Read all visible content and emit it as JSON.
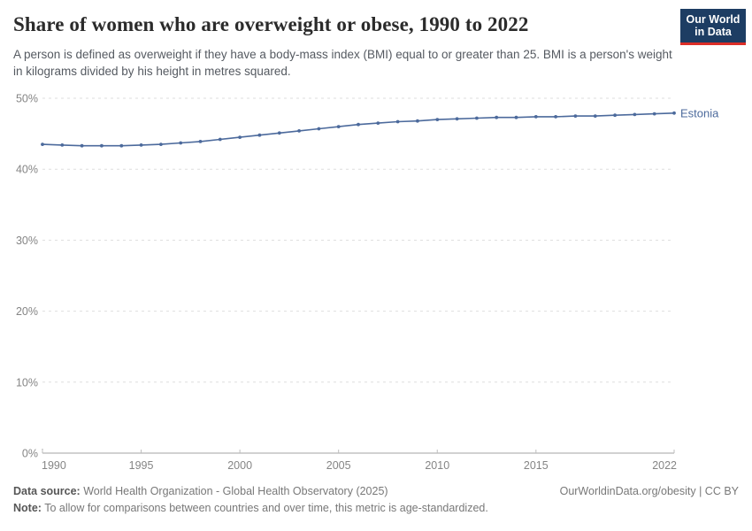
{
  "header": {
    "title": "Share of women who are overweight or obese, 1990 to 2022",
    "subtitle": "A person is defined as overweight if they have a body-mass index (BMI) equal to or greater than 25. BMI is a person's weight in kilograms divided by his height in metres squared.",
    "logo": {
      "line1": "Our World",
      "line2": "in Data",
      "bg_color": "#1d3d63",
      "accent_color": "#dc2e27"
    }
  },
  "chart_data": {
    "type": "line",
    "title": "Share of women who are overweight or obese, 1990 to 2022",
    "xlabel": "",
    "ylabel": "",
    "xlim": [
      1990,
      2022
    ],
    "ylim": [
      0,
      50
    ],
    "x_ticks": [
      1990,
      1995,
      2000,
      2005,
      2010,
      2015,
      2022
    ],
    "y_ticks": [
      "0%",
      "10%",
      "20%",
      "30%",
      "40%",
      "50%"
    ],
    "grid": "horizontal-dashed",
    "legend_position": "end-of-line-label",
    "series": [
      {
        "name": "Estonia",
        "color": "#4c6a9c",
        "x": [
          1990,
          1991,
          1992,
          1993,
          1994,
          1995,
          1996,
          1997,
          1998,
          1999,
          2000,
          2001,
          2002,
          2003,
          2004,
          2005,
          2006,
          2007,
          2008,
          2009,
          2010,
          2011,
          2012,
          2013,
          2014,
          2015,
          2016,
          2017,
          2018,
          2019,
          2020,
          2021,
          2022
        ],
        "values": [
          43.5,
          43.4,
          43.3,
          43.3,
          43.3,
          43.4,
          43.5,
          43.7,
          43.9,
          44.2,
          44.5,
          44.8,
          45.1,
          45.4,
          45.7,
          46.0,
          46.3,
          46.5,
          46.7,
          46.8,
          47.0,
          47.1,
          47.2,
          47.3,
          47.3,
          47.4,
          47.4,
          47.5,
          47.5,
          47.6,
          47.7,
          47.8,
          47.9
        ]
      }
    ]
  },
  "footer": {
    "datasource_label": "Data source:",
    "datasource_text": " World Health Organization - Global Health Observatory (2025)",
    "link": "OurWorldinData.org/obesity | CC BY",
    "note_label": "Note:",
    "note_text": " To allow for comparisons between countries and over time, this metric is age-standardized."
  }
}
